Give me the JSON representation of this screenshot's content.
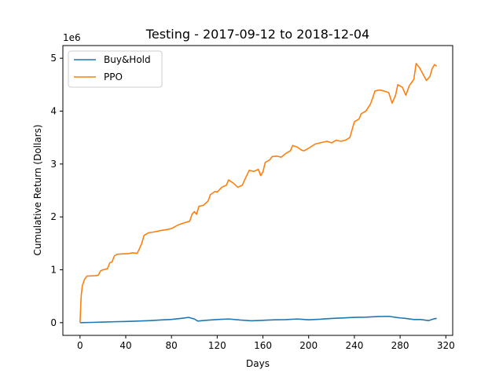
{
  "chart_data": {
    "type": "line",
    "title": "Testing - 2017-09-12 to 2018-12-04",
    "xlabel": "Days",
    "ylabel": "Cumulative Return (Dollars)",
    "y_offset_text": "1e6",
    "xlim": [
      -15,
      326
    ],
    "ylim": [
      -240000,
      5240000
    ],
    "xticks": [
      0,
      40,
      80,
      120,
      160,
      200,
      240,
      280,
      320
    ],
    "yticks": [
      0,
      1,
      2,
      3,
      4,
      5
    ],
    "ytick_scale": 1000000,
    "grid": false,
    "legend_position": "upper left",
    "series": [
      {
        "name": "Buy&Hold",
        "color": "#1f77b4",
        "points": [
          [
            0,
            0
          ],
          [
            10,
            5000
          ],
          [
            20,
            12000
          ],
          [
            30,
            18000
          ],
          [
            40,
            22000
          ],
          [
            50,
            30000
          ],
          [
            60,
            38000
          ],
          [
            70,
            50000
          ],
          [
            80,
            62000
          ],
          [
            88,
            80000
          ],
          [
            95,
            100000
          ],
          [
            100,
            70000
          ],
          [
            103,
            30000
          ],
          [
            110,
            45000
          ],
          [
            120,
            60000
          ],
          [
            130,
            70000
          ],
          [
            140,
            50000
          ],
          [
            150,
            35000
          ],
          [
            160,
            45000
          ],
          [
            170,
            55000
          ],
          [
            180,
            58000
          ],
          [
            190,
            70000
          ],
          [
            200,
            55000
          ],
          [
            210,
            65000
          ],
          [
            220,
            80000
          ],
          [
            230,
            90000
          ],
          [
            240,
            100000
          ],
          [
            250,
            105000
          ],
          [
            260,
            115000
          ],
          [
            270,
            120000
          ],
          [
            278,
            95000
          ],
          [
            285,
            80000
          ],
          [
            292,
            60000
          ],
          [
            298,
            60000
          ],
          [
            305,
            40000
          ],
          [
            310,
            75000
          ],
          [
            312,
            80000
          ]
        ]
      },
      {
        "name": "PPO",
        "color": "#ff7f0e",
        "points": [
          [
            0,
            0
          ],
          [
            1,
            500000
          ],
          [
            2,
            700000
          ],
          [
            4,
            820000
          ],
          [
            6,
            880000
          ],
          [
            10,
            885000
          ],
          [
            14,
            890000
          ],
          [
            16,
            900000
          ],
          [
            18,
            980000
          ],
          [
            20,
            1000000
          ],
          [
            24,
            1020000
          ],
          [
            26,
            1130000
          ],
          [
            28,
            1150000
          ],
          [
            30,
            1260000
          ],
          [
            32,
            1290000
          ],
          [
            36,
            1300000
          ],
          [
            42,
            1305000
          ],
          [
            46,
            1320000
          ],
          [
            50,
            1310000
          ],
          [
            52,
            1400000
          ],
          [
            54,
            1500000
          ],
          [
            56,
            1650000
          ],
          [
            60,
            1700000
          ],
          [
            66,
            1720000
          ],
          [
            70,
            1740000
          ],
          [
            76,
            1760000
          ],
          [
            80,
            1780000
          ],
          [
            86,
            1850000
          ],
          [
            90,
            1880000
          ],
          [
            96,
            1920000
          ],
          [
            98,
            2050000
          ],
          [
            100,
            2100000
          ],
          [
            102,
            2050000
          ],
          [
            104,
            2200000
          ],
          [
            108,
            2220000
          ],
          [
            112,
            2300000
          ],
          [
            114,
            2420000
          ],
          [
            118,
            2480000
          ],
          [
            120,
            2470000
          ],
          [
            124,
            2560000
          ],
          [
            128,
            2600000
          ],
          [
            130,
            2700000
          ],
          [
            134,
            2640000
          ],
          [
            138,
            2560000
          ],
          [
            142,
            2600000
          ],
          [
            144,
            2700000
          ],
          [
            148,
            2880000
          ],
          [
            152,
            2860000
          ],
          [
            156,
            2900000
          ],
          [
            158,
            2780000
          ],
          [
            160,
            2850000
          ],
          [
            162,
            3030000
          ],
          [
            166,
            3080000
          ],
          [
            168,
            3140000
          ],
          [
            172,
            3150000
          ],
          [
            176,
            3130000
          ],
          [
            180,
            3200000
          ],
          [
            184,
            3250000
          ],
          [
            186,
            3350000
          ],
          [
            190,
            3320000
          ],
          [
            194,
            3260000
          ],
          [
            196,
            3250000
          ],
          [
            200,
            3300000
          ],
          [
            206,
            3380000
          ],
          [
            210,
            3400000
          ],
          [
            216,
            3430000
          ],
          [
            220,
            3400000
          ],
          [
            224,
            3450000
          ],
          [
            228,
            3430000
          ],
          [
            232,
            3450000
          ],
          [
            236,
            3500000
          ],
          [
            238,
            3650000
          ],
          [
            240,
            3800000
          ],
          [
            244,
            3850000
          ],
          [
            246,
            3950000
          ],
          [
            250,
            4000000
          ],
          [
            254,
            4130000
          ],
          [
            256,
            4250000
          ],
          [
            258,
            4380000
          ],
          [
            262,
            4400000
          ],
          [
            266,
            4380000
          ],
          [
            270,
            4350000
          ],
          [
            273,
            4150000
          ],
          [
            276,
            4300000
          ],
          [
            278,
            4500000
          ],
          [
            282,
            4450000
          ],
          [
            285,
            4300000
          ],
          [
            288,
            4480000
          ],
          [
            292,
            4600000
          ],
          [
            294,
            4900000
          ],
          [
            297,
            4820000
          ],
          [
            300,
            4700000
          ],
          [
            303,
            4580000
          ],
          [
            306,
            4650000
          ],
          [
            308,
            4800000
          ],
          [
            310,
            4880000
          ],
          [
            312,
            4850000
          ]
        ]
      }
    ]
  }
}
